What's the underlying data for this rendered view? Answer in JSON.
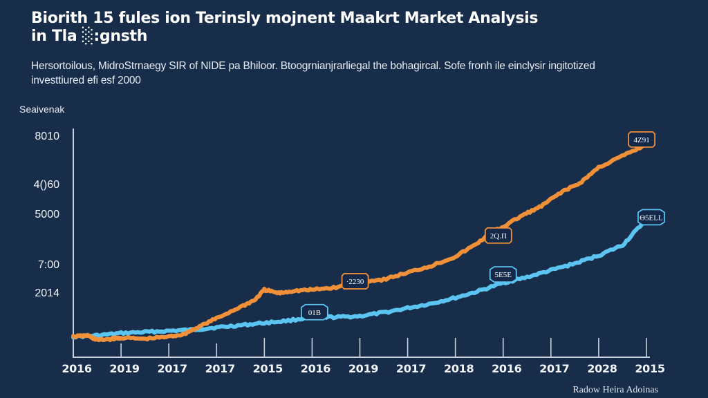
{
  "header": {
    "title_line1": "Biorith 15 fules ion Terinsly mojnent Maakrt Market Analysis",
    "title_line2": "in Tla ░:gnsth",
    "subtitle_line1": "Hersortoilous, MidroStrnaegy SIR of NIDE pa Bhiloor. Btoogrnianjrarliegal the bohagircal. Sofe fronh ile einclysir ingitotized",
    "subtitle_line2": "investtiured efi esf 2000"
  },
  "source_note": "Radow Heira Adoinas",
  "chart_data": {
    "type": "line",
    "title": "Biorith 15 fules ion Terinsly mojnent Maakrt Market Analysis in Tla ░:gnsth",
    "xlabel": "",
    "ylabel": "Seaivenak",
    "x_tick_labels": [
      "2016",
      "2019",
      "2017",
      "2017",
      "2015",
      "2016",
      "2019",
      "2017",
      "2018",
      "2016",
      "2017",
      "2028",
      "2015"
    ],
    "y_tick_labels": [
      {
        "label": "8010",
        "level": 96
      },
      {
        "label": "4()60",
        "level": 75
      },
      {
        "label": "5000",
        "level": 62
      },
      {
        "label": "7:00",
        "level": 40
      },
      {
        "label": "2014",
        "level": 27.5
      }
    ],
    "y_range_note": "values expressed as percent of plot height above the x-axis baseline (0-100), since printed tick labels are non-monotonic",
    "ylim": [
      0,
      100
    ],
    "xlim": [
      0,
      12
    ],
    "grid": false,
    "series": [
      {
        "name": "Orange series",
        "color": "#f0913a",
        "points": [
          [
            0,
            9
          ],
          [
            0.3,
            9.5
          ],
          [
            0.5,
            7.5
          ],
          [
            0.8,
            8
          ],
          [
            1,
            8.5
          ],
          [
            1.5,
            8
          ],
          [
            2,
            9
          ],
          [
            2.3,
            10
          ],
          [
            2.6,
            13
          ],
          [
            3,
            17
          ],
          [
            3.5,
            22
          ],
          [
            3.8,
            25
          ],
          [
            4,
            29.5
          ],
          [
            4.3,
            28
          ],
          [
            4.6,
            29
          ],
          [
            5,
            29.5
          ],
          [
            5.5,
            30.5
          ],
          [
            6,
            33
          ],
          [
            6.5,
            34
          ],
          [
            7,
            37
          ],
          [
            7.5,
            40
          ],
          [
            8,
            44
          ],
          [
            8.4,
            49
          ],
          [
            8.8,
            55
          ],
          [
            9,
            57
          ],
          [
            9.4,
            62
          ],
          [
            9.8,
            66
          ],
          [
            10.2,
            72
          ],
          [
            10.6,
            76
          ],
          [
            11,
            83
          ],
          [
            11.5,
            88
          ],
          [
            11.9,
            92
          ]
        ],
        "labels": [
          {
            "x": 5.9,
            "y": 32,
            "text": "·2230"
          },
          {
            "x": 8.9,
            "y": 52,
            "text": "2Q.Π"
          },
          {
            "x": 11.9,
            "y": 94,
            "text": "4Z91"
          }
        ]
      },
      {
        "name": "Blue series",
        "color": "#5bc4f0",
        "points": [
          [
            0,
            9
          ],
          [
            0.5,
            9.5
          ],
          [
            1,
            10.5
          ],
          [
            1.5,
            11
          ],
          [
            2,
            11.5
          ],
          [
            2.5,
            12
          ],
          [
            3,
            13
          ],
          [
            3.5,
            14
          ],
          [
            4,
            15
          ],
          [
            4.5,
            16
          ],
          [
            5,
            17.5
          ],
          [
            5.5,
            17.5
          ],
          [
            6,
            18
          ],
          [
            6.5,
            19.5
          ],
          [
            7,
            21.5
          ],
          [
            7.5,
            23.5
          ],
          [
            8,
            26
          ],
          [
            8.5,
            29
          ],
          [
            9,
            32.5
          ],
          [
            9.5,
            35
          ],
          [
            10,
            38
          ],
          [
            10.5,
            41
          ],
          [
            11,
            44.5
          ],
          [
            11.5,
            49
          ],
          [
            11.9,
            58
          ]
        ],
        "labels": [
          {
            "x": 5.05,
            "y": 18.5,
            "text": "01B"
          },
          {
            "x": 9.0,
            "y": 35,
            "text": "5E5E"
          },
          {
            "x": 12.1,
            "y": 60,
            "text": "Θ5ELL"
          }
        ]
      }
    ]
  }
}
